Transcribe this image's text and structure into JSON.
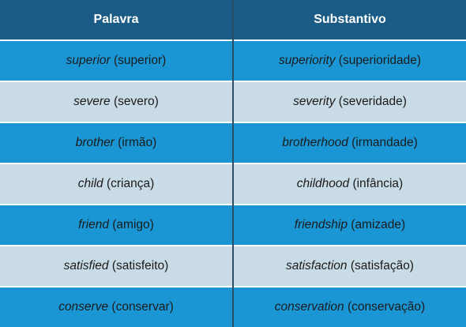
{
  "table": {
    "headers": [
      "Palavra",
      "Substantivo"
    ],
    "rows": [
      [
        {
          "word": "superior",
          "translation": "(superior)"
        },
        {
          "word": "superiority",
          "translation": "(superioridade)"
        }
      ],
      [
        {
          "word": "severe",
          "translation": "(severo)"
        },
        {
          "word": "severity",
          "translation": "(severidade)"
        }
      ],
      [
        {
          "word": "brother",
          "translation": "(irmão)"
        },
        {
          "word": "brotherhood",
          "translation": "(irmandade)"
        }
      ],
      [
        {
          "word": "child",
          "translation": "(criança)"
        },
        {
          "word": "childhood",
          "translation": "(infância)"
        }
      ],
      [
        {
          "word": "friend",
          "translation": "(amigo)"
        },
        {
          "word": "friendship",
          "translation": "(amizade)"
        }
      ],
      [
        {
          "word": "satisfied",
          "translation": "(satisfeito)"
        },
        {
          "word": "satisfaction",
          "translation": "(satisfação)"
        }
      ],
      [
        {
          "word": "conserve",
          "translation": "(conservar)"
        },
        {
          "word": "conservation",
          "translation": "(conservação)"
        }
      ]
    ]
  }
}
